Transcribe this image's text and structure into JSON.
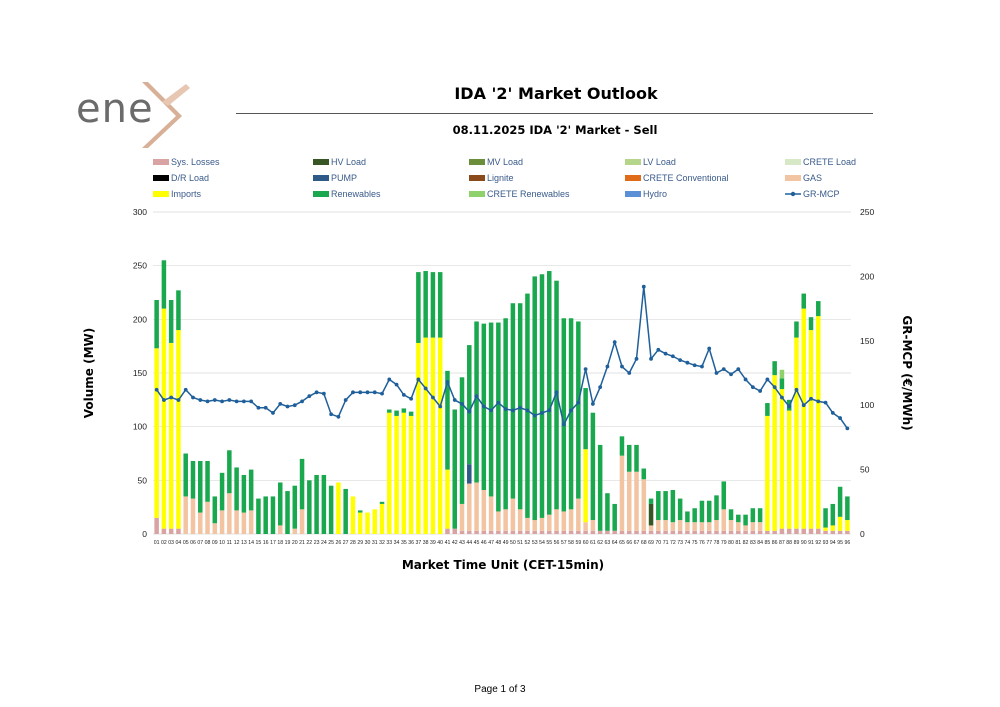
{
  "header": {
    "logo_text": "ene",
    "report_title": "IDA '2' Market Outlook"
  },
  "footer": {
    "page_label": "Page 1 of 3"
  },
  "colors": {
    "losses": "#d9a3a3",
    "hv_load": "#375623",
    "mv_load": "#6a8e3a",
    "lv_load": "#b5d58a",
    "crete_load": "#d6e8c6",
    "dr_load": "#000000",
    "pump": "#2e5a87",
    "lignite": "#8a4a1a",
    "crete_conv": "#e06c1a",
    "gas": "#f3c4a2",
    "imports": "#ffff00",
    "renewables": "#1aa84f",
    "crete_renew": "#8fd16a",
    "hydro": "#5b8fd6",
    "price": "#1f5f9a"
  },
  "chart_data": {
    "type": "bar",
    "title": "08.11.2025  IDA '2' Market - Sell",
    "xlabel": "Market Time Unit (CET-15min)",
    "ylabel": "Volume (MW)",
    "y2label": "GR-MCP (€/MWh)",
    "ylim": [
      0,
      300
    ],
    "y2lim": [
      0,
      250
    ],
    "yticks": [
      "0",
      "50",
      "100",
      "150",
      "200",
      "250",
      "300"
    ],
    "y2ticks": [
      "0",
      "50",
      "100",
      "150",
      "200",
      "250"
    ],
    "categories": [
      "01",
      "02",
      "03",
      "04",
      "05",
      "06",
      "07",
      "08",
      "09",
      "10",
      "11",
      "12",
      "13",
      "14",
      "15",
      "16",
      "17",
      "18",
      "19",
      "20",
      "21",
      "22",
      "23",
      "24",
      "25",
      "26",
      "27",
      "28",
      "29",
      "30",
      "31",
      "32",
      "33",
      "34",
      "35",
      "36",
      "37",
      "38",
      "39",
      "40",
      "41",
      "42",
      "43",
      "44",
      "45",
      "46",
      "47",
      "48",
      "49",
      "50",
      "51",
      "52",
      "53",
      "54",
      "55",
      "56",
      "57",
      "58",
      "59",
      "60",
      "61",
      "62",
      "63",
      "64",
      "65",
      "66",
      "67",
      "68",
      "69",
      "70",
      "71",
      "72",
      "73",
      "74",
      "75",
      "76",
      "77",
      "78",
      "79",
      "80",
      "81",
      "82",
      "83",
      "84",
      "85",
      "86",
      "87",
      "88",
      "89",
      "90",
      "91",
      "92",
      "93",
      "94",
      "95",
      "96"
    ],
    "legend": [
      {
        "key": "losses",
        "label": "Sys. Losses",
        "kind": "bar"
      },
      {
        "key": "hv_load",
        "label": "HV Load",
        "kind": "bar"
      },
      {
        "key": "mv_load",
        "label": "MV Load",
        "kind": "bar"
      },
      {
        "key": "lv_load",
        "label": "LV Load",
        "kind": "bar"
      },
      {
        "key": "crete_load",
        "label": "CRETE Load",
        "kind": "bar"
      },
      {
        "key": "dr_load",
        "label": "D/R Load",
        "kind": "bar"
      },
      {
        "key": "pump",
        "label": "PUMP",
        "kind": "bar"
      },
      {
        "key": "lignite",
        "label": "Lignite",
        "kind": "bar"
      },
      {
        "key": "crete_conv",
        "label": "CRETE Conventional",
        "kind": "bar"
      },
      {
        "key": "gas",
        "label": "GAS",
        "kind": "bar"
      },
      {
        "key": "imports",
        "label": "Imports",
        "kind": "bar"
      },
      {
        "key": "renewables",
        "label": "Renewables",
        "kind": "bar"
      },
      {
        "key": "crete_renew",
        "label": "CRETE Renewables",
        "kind": "bar"
      },
      {
        "key": "hydro",
        "label": "Hydro",
        "kind": "bar"
      },
      {
        "key": "price",
        "label": "GR-MCP",
        "kind": "line"
      }
    ],
    "series": [
      {
        "key": "losses",
        "name": "Sys. Losses",
        "values": [
          15,
          5,
          5,
          5,
          0,
          0,
          0,
          0,
          0,
          0,
          0,
          0,
          0,
          0,
          0,
          0,
          0,
          0,
          0,
          0,
          0,
          0,
          0,
          0,
          0,
          0,
          0,
          0,
          0,
          0,
          0,
          0,
          0,
          0,
          0,
          0,
          0,
          0,
          0,
          0,
          5,
          5,
          3,
          3,
          3,
          3,
          3,
          3,
          3,
          3,
          3,
          3,
          3,
          3,
          3,
          3,
          3,
          3,
          3,
          3,
          3,
          3,
          3,
          3,
          3,
          3,
          3,
          3,
          3,
          3,
          3,
          3,
          3,
          3,
          3,
          3,
          3,
          3,
          3,
          3,
          3,
          3,
          3,
          3,
          3,
          3,
          5,
          5,
          5,
          5,
          5,
          5,
          3,
          3,
          3,
          3
        ]
      },
      {
        "key": "gas",
        "name": "GAS",
        "values": [
          0,
          0,
          0,
          0,
          35,
          33,
          20,
          30,
          10,
          22,
          38,
          22,
          20,
          22,
          0,
          0,
          0,
          8,
          0,
          5,
          23,
          0,
          0,
          0,
          0,
          0,
          0,
          0,
          0,
          0,
          0,
          0,
          0,
          0,
          0,
          0,
          0,
          0,
          0,
          0,
          0,
          0,
          25,
          44,
          45,
          38,
          32,
          18,
          20,
          30,
          20,
          12,
          10,
          12,
          15,
          20,
          18,
          20,
          30,
          8,
          10,
          0,
          0,
          0,
          70,
          55,
          55,
          48,
          5,
          10,
          10,
          8,
          10,
          8,
          8,
          8,
          8,
          10,
          20,
          10,
          8,
          5,
          8,
          8,
          0,
          0,
          0,
          0,
          0,
          0,
          0,
          0,
          0,
          0,
          0,
          0
        ]
      },
      {
        "key": "pump",
        "name": "PUMP",
        "values": [
          0,
          0,
          0,
          0,
          0,
          0,
          0,
          0,
          0,
          0,
          0,
          0,
          0,
          0,
          0,
          0,
          0,
          0,
          0,
          0,
          0,
          0,
          0,
          0,
          0,
          0,
          0,
          0,
          0,
          0,
          0,
          0,
          0,
          0,
          0,
          0,
          0,
          0,
          0,
          0,
          0,
          0,
          0,
          18,
          0,
          0,
          0,
          0,
          0,
          0,
          0,
          0,
          0,
          0,
          0,
          0,
          0,
          0,
          0,
          0,
          0,
          0,
          0,
          0,
          0,
          0,
          0,
          0,
          0,
          0,
          0,
          0,
          0,
          0,
          0,
          0,
          0,
          0,
          0,
          0,
          0,
          0,
          0,
          0,
          0,
          0,
          0,
          0,
          0,
          0,
          0,
          0,
          0,
          0,
          0,
          0
        ]
      },
      {
        "key": "hv_load",
        "name": "HV Load",
        "values": [
          0,
          0,
          0,
          0,
          0,
          0,
          0,
          0,
          0,
          0,
          0,
          0,
          0,
          0,
          0,
          0,
          0,
          0,
          0,
          0,
          0,
          0,
          0,
          0,
          0,
          0,
          0,
          0,
          0,
          0,
          0,
          0,
          0,
          0,
          0,
          0,
          0,
          0,
          0,
          0,
          0,
          0,
          0,
          0,
          0,
          0,
          0,
          0,
          0,
          0,
          0,
          0,
          0,
          0,
          0,
          0,
          0,
          0,
          0,
          0,
          0,
          0,
          0,
          0,
          0,
          0,
          0,
          0,
          20,
          0,
          0,
          0,
          0,
          0,
          0,
          0,
          0,
          0,
          0,
          0,
          0,
          0,
          0,
          0,
          0,
          0,
          0,
          0,
          0,
          0,
          0,
          0,
          0,
          0,
          0,
          0
        ]
      },
      {
        "key": "imports",
        "name": "Imports",
        "values": [
          158,
          205,
          173,
          185,
          0,
          0,
          0,
          0,
          0,
          0,
          0,
          0,
          0,
          0,
          0,
          0,
          0,
          0,
          0,
          0,
          0,
          0,
          0,
          0,
          0,
          48,
          0,
          35,
          20,
          20,
          23,
          28,
          113,
          110,
          113,
          110,
          178,
          183,
          183,
          183,
          55,
          0,
          0,
          0,
          0,
          0,
          0,
          0,
          0,
          0,
          0,
          0,
          0,
          0,
          0,
          0,
          0,
          0,
          0,
          68,
          0,
          0,
          0,
          0,
          0,
          0,
          0,
          0,
          0,
          0,
          0,
          0,
          0,
          0,
          0,
          0,
          0,
          0,
          0,
          0,
          0,
          0,
          0,
          0,
          107,
          145,
          130,
          110,
          178,
          205,
          185,
          198,
          3,
          5,
          13,
          10
        ]
      },
      {
        "key": "renewables",
        "name": "Renewables",
        "values": [
          45,
          45,
          40,
          37,
          40,
          35,
          48,
          38,
          25,
          35,
          40,
          40,
          35,
          38,
          33,
          35,
          35,
          40,
          40,
          40,
          47,
          50,
          55,
          55,
          45,
          0,
          42,
          0,
          2,
          0,
          0,
          2,
          3,
          5,
          4,
          4,
          66,
          62,
          61,
          61,
          92,
          111,
          118,
          111,
          150,
          155,
          162,
          176,
          178,
          182,
          192,
          209,
          227,
          227,
          227,
          213,
          180,
          178,
          165,
          57,
          100,
          80,
          35,
          25,
          18,
          25,
          25,
          10,
          5,
          27,
          27,
          30,
          20,
          10,
          13,
          20,
          20,
          23,
          26,
          10,
          7,
          10,
          13,
          13,
          12,
          13,
          10,
          10,
          15,
          14,
          12,
          14,
          18,
          20,
          28,
          22
        ]
      },
      {
        "key": "crete_renew",
        "name": "CRETE Renewables",
        "values": [
          0,
          0,
          0,
          0,
          0,
          0,
          0,
          0,
          0,
          0,
          0,
          0,
          0,
          0,
          0,
          0,
          0,
          0,
          0,
          0,
          0,
          0,
          0,
          0,
          0,
          0,
          0,
          0,
          0,
          0,
          0,
          0,
          0,
          0,
          0,
          0,
          0,
          0,
          0,
          0,
          0,
          0,
          0,
          0,
          0,
          0,
          0,
          0,
          0,
          0,
          0,
          0,
          0,
          0,
          0,
          0,
          0,
          0,
          0,
          0,
          0,
          0,
          0,
          0,
          0,
          0,
          0,
          0,
          0,
          0,
          0,
          0,
          0,
          0,
          0,
          0,
          0,
          0,
          0,
          0,
          0,
          0,
          0,
          0,
          0,
          0,
          8,
          0,
          0,
          0,
          0,
          0,
          0,
          0,
          0,
          0
        ]
      },
      {
        "key": "price",
        "name": "GR-MCP",
        "values": [
          112,
          104,
          106,
          104,
          112,
          106,
          104,
          103,
          104,
          103,
          104,
          103,
          103,
          103,
          98,
          98,
          94,
          101,
          99,
          100,
          103,
          107,
          110,
          109,
          93,
          91,
          104,
          110,
          110,
          110,
          110,
          109,
          120,
          116,
          108,
          105,
          120,
          113,
          106,
          99,
          118,
          104,
          101,
          95,
          107,
          99,
          96,
          102,
          97,
          96,
          98,
          96,
          92,
          94,
          96,
          110,
          85,
          96,
          102,
          128,
          101,
          114,
          130,
          149,
          130,
          125,
          136,
          192,
          136,
          143,
          140,
          138,
          135,
          133,
          131,
          130,
          144,
          125,
          128,
          124,
          128,
          120,
          114,
          111,
          120,
          114,
          106,
          99,
          112,
          100,
          105,
          103,
          102,
          94,
          90,
          82
        ]
      }
    ]
  }
}
